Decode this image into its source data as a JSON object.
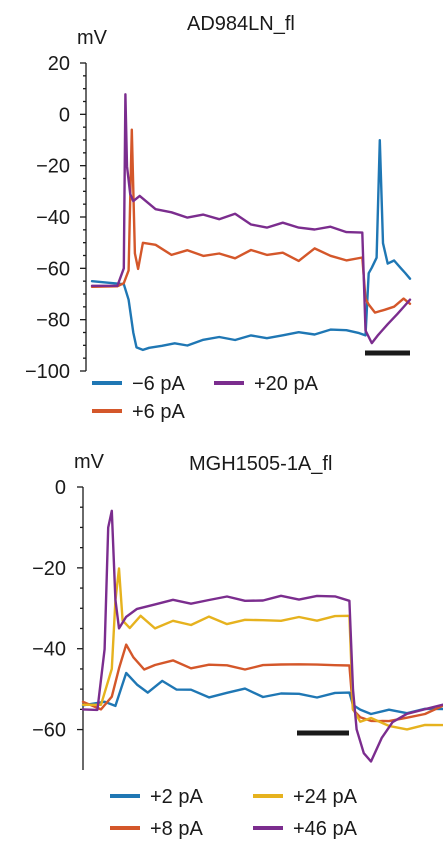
{
  "colors": {
    "blue": "#1f77b4",
    "orange": "#d4572a",
    "purple": "#7b2d8e",
    "gold": "#e6b21e",
    "axis": "#1a1a1a"
  },
  "chart_data": [
    {
      "type": "line",
      "title": "AD984LN_fl",
      "ylabel": "mV",
      "ylim": [
        -100,
        20
      ],
      "yticks": [
        "20",
        "0",
        "−20",
        "−40",
        "−60",
        "−80",
        "−100"
      ],
      "ytick_values": [
        20,
        0,
        -20,
        -40,
        -60,
        -80,
        -100
      ],
      "xlim": [
        0,
        1
      ],
      "scale_bar": true,
      "legend": {
        "placement": "bottom",
        "columns": 2
      },
      "series": [
        {
          "name": "−6 pA",
          "color": "#1f77b4",
          "x": [
            0,
            0.1,
            0.115,
            0.13,
            0.14,
            0.16,
            0.18,
            0.22,
            0.26,
            0.3,
            0.35,
            0.4,
            0.45,
            0.5,
            0.55,
            0.6,
            0.65,
            0.7,
            0.75,
            0.8,
            0.84,
            0.86,
            0.87,
            0.88,
            0.895,
            0.905,
            0.915,
            0.93,
            0.95,
            0.97,
            0.985,
            1.0
          ],
          "y": [
            -65,
            -66,
            -72,
            -85,
            -91,
            -92,
            -91,
            -90,
            -89,
            -90,
            -88,
            -87,
            -88,
            -86,
            -87,
            -86,
            -85,
            -86,
            -84,
            -84,
            -85,
            -86,
            -62,
            -60,
            -56,
            -10,
            -50,
            -58,
            -57,
            -60,
            -62,
            -64
          ]
        },
        {
          "name": "+6 pA",
          "color": "#d4572a",
          "x": [
            0,
            0.08,
            0.1,
            0.115,
            0.125,
            0.135,
            0.145,
            0.16,
            0.2,
            0.25,
            0.3,
            0.35,
            0.4,
            0.45,
            0.5,
            0.55,
            0.6,
            0.65,
            0.7,
            0.75,
            0.8,
            0.85,
            0.86,
            0.87,
            0.89,
            0.92,
            0.95,
            0.98,
            1.0
          ],
          "y": [
            -67,
            -67,
            -66,
            -61,
            -6,
            -54,
            -60,
            -50,
            -51,
            -55,
            -53,
            -55,
            -54,
            -56,
            -53,
            -55,
            -54,
            -57,
            -52,
            -55,
            -57,
            -56,
            -72,
            -74,
            -77,
            -76,
            -75,
            -72,
            -74
          ]
        },
        {
          "name": "+20 pA",
          "color": "#7b2d8e",
          "x": [
            0,
            0.08,
            0.1,
            0.105,
            0.11,
            0.12,
            0.13,
            0.15,
            0.2,
            0.25,
            0.3,
            0.35,
            0.4,
            0.45,
            0.5,
            0.55,
            0.6,
            0.65,
            0.7,
            0.75,
            0.8,
            0.85,
            0.86,
            0.88,
            0.9,
            0.93,
            0.96,
            0.98,
            1.0
          ],
          "y": [
            -67,
            -67,
            -60,
            8,
            -20,
            -31,
            -34,
            -32,
            -37,
            -38,
            -40,
            -39,
            -41,
            -39,
            -43,
            -44,
            -42,
            -44,
            -45,
            -44,
            -46,
            -46,
            -84,
            -89,
            -86,
            -82,
            -78,
            -75,
            -72
          ]
        }
      ]
    },
    {
      "type": "line",
      "title": "MGH1505-1A_fl",
      "ylabel": "mV",
      "ylim": [
        -70,
        0
      ],
      "yticks": [
        "0",
        "−20",
        "−40",
        "−60"
      ],
      "ytick_values": [
        0,
        -20,
        -40,
        -60
      ],
      "xlim": [
        0,
        1
      ],
      "scale_bar": true,
      "legend": {
        "placement": "bottom",
        "columns": 2
      },
      "series": [
        {
          "name": "+2 pA",
          "color": "#1f77b4",
          "x": [
            0,
            0.06,
            0.09,
            0.12,
            0.15,
            0.18,
            0.22,
            0.26,
            0.3,
            0.35,
            0.4,
            0.45,
            0.5,
            0.55,
            0.6,
            0.65,
            0.7,
            0.74,
            0.75,
            0.77,
            0.8,
            0.85,
            0.9,
            0.95,
            1.0
          ],
          "y": [
            -54,
            -53,
            -54,
            -46,
            -49,
            -51,
            -48,
            -50,
            -50,
            -52,
            -51,
            -50,
            -52,
            -51,
            -51,
            -52,
            -51,
            -51,
            -54,
            -55,
            -56,
            -55,
            -56,
            -55,
            -55
          ]
        },
        {
          "name": "+8 pA",
          "color": "#d4572a",
          "x": [
            0,
            0.05,
            0.08,
            0.1,
            0.12,
            0.14,
            0.17,
            0.2,
            0.25,
            0.3,
            0.35,
            0.4,
            0.45,
            0.5,
            0.55,
            0.6,
            0.65,
            0.7,
            0.74,
            0.75,
            0.77,
            0.8,
            0.85,
            0.9,
            0.95,
            1.0
          ],
          "y": [
            -53,
            -55,
            -52,
            -45,
            -39,
            -42,
            -45,
            -44,
            -43,
            -45,
            -44,
            -44,
            -45,
            -44,
            -44,
            -44,
            -44,
            -44,
            -44,
            -55,
            -57,
            -58,
            -58,
            -57,
            -56,
            -54
          ]
        },
        {
          "name": "+24 pA",
          "color": "#e6b21e",
          "x": [
            0,
            0.05,
            0.08,
            0.09,
            0.1,
            0.11,
            0.13,
            0.16,
            0.2,
            0.25,
            0.3,
            0.35,
            0.4,
            0.45,
            0.5,
            0.55,
            0.6,
            0.65,
            0.7,
            0.74,
            0.75,
            0.77,
            0.8,
            0.85,
            0.9,
            0.95,
            1.0
          ],
          "y": [
            -54,
            -54,
            -45,
            -28,
            -20,
            -33,
            -35,
            -32,
            -35,
            -33,
            -34,
            -32,
            -34,
            -33,
            -33,
            -33,
            -32,
            -33,
            -32,
            -32,
            -55,
            -58,
            -57,
            -59,
            -60,
            -59,
            -59
          ]
        },
        {
          "name": "+46 pA",
          "color": "#7b2d8e",
          "x": [
            0,
            0.04,
            0.06,
            0.07,
            0.08,
            0.09,
            0.1,
            0.12,
            0.15,
            0.2,
            0.25,
            0.3,
            0.35,
            0.4,
            0.45,
            0.5,
            0.55,
            0.6,
            0.65,
            0.7,
            0.74,
            0.75,
            0.76,
            0.78,
            0.8,
            0.83,
            0.86,
            0.9,
            0.95,
            1.0
          ],
          "y": [
            -55,
            -55,
            -40,
            -10,
            -6,
            -28,
            -35,
            -32,
            -30,
            -29,
            -28,
            -29,
            -28,
            -27,
            -28,
            -28,
            -27,
            -28,
            -27,
            -27,
            -28,
            -50,
            -60,
            -66,
            -68,
            -62,
            -58,
            -56,
            -55,
            -54
          ]
        }
      ]
    }
  ]
}
